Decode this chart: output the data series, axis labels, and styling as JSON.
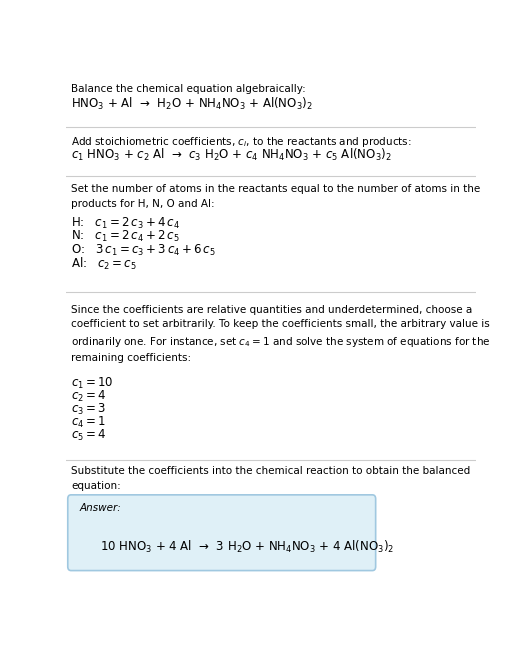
{
  "bg_color": "#ffffff",
  "text_color": "#000000",
  "box_color": "#dff0f7",
  "box_border": "#a0c8e0",
  "title": "Balance the chemical equation algebraically:",
  "equation_line": "HNO$_3$ + Al  →  H$_2$O + NH$_4$NO$_3$ + Al(NO$_3$)$_2$",
  "section2_title": "Add stoichiometric coefficients, $c_i$, to the reactants and products:",
  "section2_eq": "$c_1$ HNO$_3$ + $c_2$ Al  →  $c_3$ H$_2$O + $c_4$ NH$_4$NO$_3$ + $c_5$ Al(NO$_3$)$_2$",
  "section3_title": "Set the number of atoms in the reactants equal to the number of atoms in the\nproducts for H, N, O and Al:",
  "section3_lines": [
    "H:   $c_1 = 2\\,c_3 + 4\\,c_4$",
    "N:   $c_1 = 2\\,c_4 + 2\\,c_5$",
    "O:   $3\\,c_1 = c_3 + 3\\,c_4 + 6\\,c_5$",
    "Al:   $c_2 = c_5$"
  ],
  "section4_text": "Since the coefficients are relative quantities and underdetermined, choose a\ncoefficient to set arbitrarily. To keep the coefficients small, the arbitrary value is\nordinarily one. For instance, set $c_4 = 1$ and solve the system of equations for the\nremaining coefficients:",
  "section4_lines": [
    "$c_1 = 10$",
    "$c_2 = 4$",
    "$c_3 = 3$",
    "$c_4 = 1$",
    "$c_5 = 4$"
  ],
  "section5_title": "Substitute the coefficients into the chemical reaction to obtain the balanced\nequation:",
  "answer_label": "Answer:",
  "answer_eq": "10 HNO$_3$ + 4 Al  →  3 H$_2$O + NH$_4$NO$_3$ + 4 Al(NO$_3$)$_2$",
  "line_color": "#cccccc",
  "fs_body": 7.5,
  "fs_eq": 8.5,
  "fs_answer": 7.5
}
